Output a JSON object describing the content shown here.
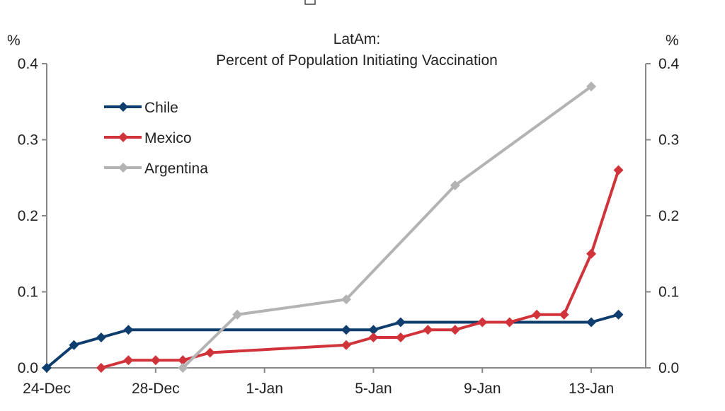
{
  "chart_data": {
    "type": "line",
    "title": "LatAm:",
    "subtitle": "Percent of Population Initiating Vaccination",
    "ylabel_left": "%",
    "ylabel_right": "%",
    "xlim": [
      "2020-12-24",
      "2021-01-15"
    ],
    "ylim": [
      0,
      0.4
    ],
    "yticks": [
      "0.0",
      "0.1",
      "0.2",
      "0.3",
      "0.4"
    ],
    "xticks": [
      {
        "date": "2020-12-24",
        "label": "24-Dec"
      },
      {
        "date": "2020-12-28",
        "label": "28-Dec"
      },
      {
        "date": "2021-01-01",
        "label": "1-Jan"
      },
      {
        "date": "2021-01-05",
        "label": "5-Jan"
      },
      {
        "date": "2021-01-09",
        "label": "9-Jan"
      },
      {
        "date": "2021-01-13",
        "label": "13-Jan"
      }
    ],
    "grid": false,
    "legend_placement": "top-left",
    "series": [
      {
        "name": "Chile",
        "color": "#0f3d6e",
        "marker": "diamond",
        "points": [
          [
            "2020-12-24",
            0
          ],
          [
            "2020-12-25",
            0.03
          ],
          [
            "2020-12-26",
            0.04
          ],
          [
            "2020-12-27",
            0.05
          ],
          [
            "2021-01-04",
            0.05
          ],
          [
            "2021-01-05",
            0.05
          ],
          [
            "2021-01-06",
            0.06
          ],
          [
            "2021-01-13",
            0.06
          ],
          [
            "2021-01-14",
            0.07
          ]
        ]
      },
      {
        "name": "Mexico",
        "color": "#d0333a",
        "marker": "diamond",
        "points": [
          [
            "2020-12-26",
            0
          ],
          [
            "2020-12-27",
            0.01
          ],
          [
            "2020-12-28",
            0.01
          ],
          [
            "2020-12-29",
            0.01
          ],
          [
            "2020-12-30",
            0.02
          ],
          [
            "2021-01-04",
            0.03
          ],
          [
            "2021-01-05",
            0.04
          ],
          [
            "2021-01-06",
            0.04
          ],
          [
            "2021-01-07",
            0.05
          ],
          [
            "2021-01-08",
            0.05
          ],
          [
            "2021-01-09",
            0.06
          ],
          [
            "2021-01-10",
            0.06
          ],
          [
            "2021-01-11",
            0.07
          ],
          [
            "2021-01-12",
            0.07
          ],
          [
            "2021-01-13",
            0.15
          ],
          [
            "2021-01-14",
            0.26
          ]
        ]
      },
      {
        "name": "Argentina",
        "color": "#b3b3b3",
        "marker": "diamond",
        "points": [
          [
            "2020-12-29",
            0
          ],
          [
            "2020-12-31",
            0.07
          ],
          [
            "2021-01-04",
            0.09
          ],
          [
            "2021-01-08",
            0.24
          ],
          [
            "2021-01-13",
            0.37
          ]
        ]
      }
    ]
  }
}
